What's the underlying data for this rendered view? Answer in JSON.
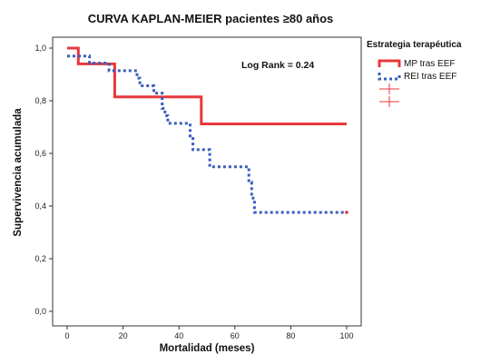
{
  "chart_data": {
    "type": "line",
    "title": "CURVA KAPLAN-MEIER pacientes ≥80 años",
    "xlabel": "Mortalidad (meses)",
    "ylabel": "Supervivencia acumulada",
    "xlim": [
      0,
      100
    ],
    "ylim": [
      0,
      1
    ],
    "x_ticks": [
      "0",
      "20",
      "40",
      "60",
      "80",
      "100"
    ],
    "y_ticks": [
      "0,0",
      "0,2",
      "0,4",
      "0,6",
      "0,8",
      "1,0"
    ],
    "grid": false,
    "legend_position": "right",
    "legend_title": "Estrategia terapéutica",
    "annotation": "Log Rank = 0.24",
    "series": [
      {
        "name": "MP tras EEF",
        "color": "#e8383b",
        "style": "solid",
        "step": true,
        "points": [
          [
            0,
            1.0
          ],
          [
            4,
            1.0
          ],
          [
            4,
            0.94
          ],
          [
            17,
            0.94
          ],
          [
            17,
            0.815
          ],
          [
            48,
            0.815
          ],
          [
            48,
            0.712
          ],
          [
            100,
            0.712
          ]
        ]
      },
      {
        "name": "REI tras EEF",
        "color": "#3a5dbf",
        "style": "dotted",
        "step": true,
        "points": [
          [
            0,
            0.97
          ],
          [
            8,
            0.97
          ],
          [
            8,
            0.943
          ],
          [
            15,
            0.943
          ],
          [
            15,
            0.914
          ],
          [
            25,
            0.914
          ],
          [
            25,
            0.886
          ],
          [
            26,
            0.886
          ],
          [
            26,
            0.857
          ],
          [
            31,
            0.857
          ],
          [
            31,
            0.829
          ],
          [
            34,
            0.829
          ],
          [
            34,
            0.771
          ],
          [
            35,
            0.771
          ],
          [
            35,
            0.743
          ],
          [
            36,
            0.743
          ],
          [
            36,
            0.714
          ],
          [
            44,
            0.714
          ],
          [
            44,
            0.657
          ],
          [
            45,
            0.657
          ],
          [
            45,
            0.614
          ],
          [
            51,
            0.614
          ],
          [
            51,
            0.549
          ],
          [
            65,
            0.549
          ],
          [
            65,
            0.49
          ],
          [
            66,
            0.49
          ],
          [
            66,
            0.43
          ],
          [
            67,
            0.43
          ],
          [
            67,
            0.376
          ],
          [
            100,
            0.376
          ]
        ]
      }
    ],
    "legend_extra_markers": [
      "censored",
      "censored"
    ]
  }
}
